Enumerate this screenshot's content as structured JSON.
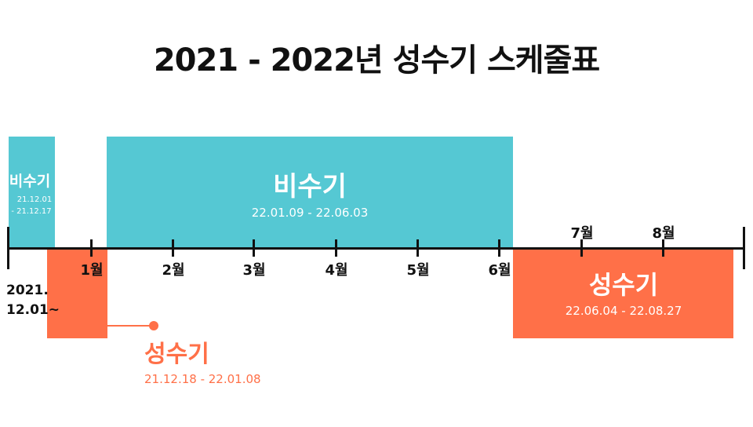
{
  "title": "2021 - 2022년 성수기 스케줄표",
  "colors": {
    "off_season": "#55c8d3",
    "peak_season": "#ff7048",
    "axis": "#111111"
  },
  "start_label": {
    "line1": "2021.",
    "line2": "12.01~"
  },
  "months": [
    "1월",
    "2월",
    "3월",
    "4월",
    "5월",
    "6월",
    "7월",
    "8월"
  ],
  "periods": [
    {
      "name": "비수기",
      "type": "off-season",
      "line1": "21.12.01",
      "line2": "- 21.12.17"
    },
    {
      "name": "성수기",
      "type": "peak-season",
      "range": "21.12.18 - 22.01.08"
    },
    {
      "name": "비수기",
      "type": "off-season",
      "range": "22.01.09 - 22.06.03"
    },
    {
      "name": "성수기",
      "type": "peak-season",
      "range": "22.06.04 - 22.08.27"
    }
  ]
}
